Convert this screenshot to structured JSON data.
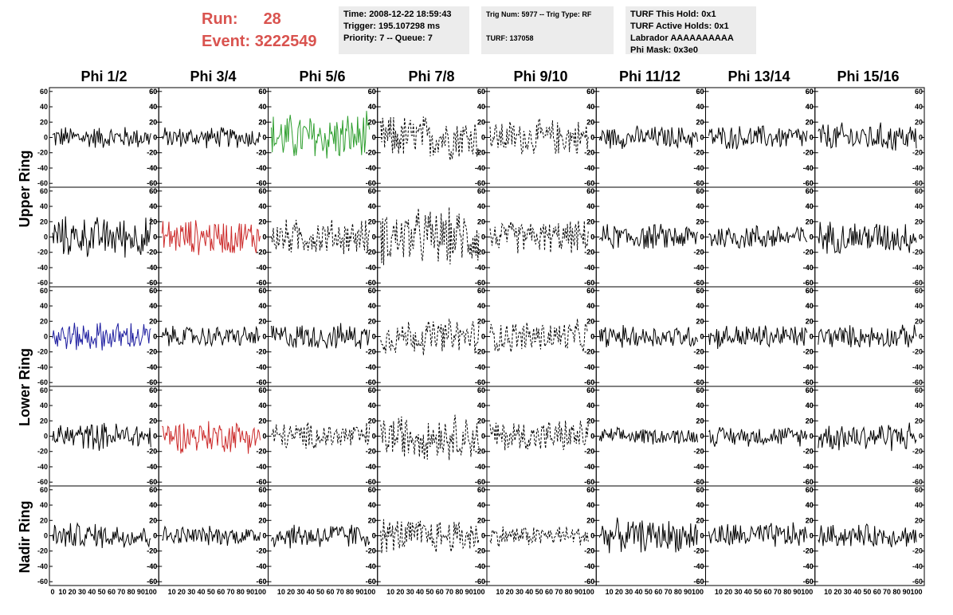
{
  "header": {
    "run_label": "Run:",
    "run_value": "28",
    "event_label": "Event:",
    "event_value": "3222549",
    "accent_color": "#d9534f"
  },
  "info_boxes": {
    "time": [
      "Time: 2008-12-22 18:59:43",
      "Trigger: 195.107298 ms",
      "Priority: 7 -- Queue: 7"
    ],
    "trig": [
      "Trig Num: 5977 -- Trig Type: RF",
      "",
      "TURF: 137058"
    ],
    "turf": [
      "TURF This Hold: 0x1",
      "TURF Active Holds: 0x1",
      "Labrador AAAAAAAAAA",
      "Phi Mask: 0x3e0"
    ]
  },
  "columns": [
    "Phi 1/2",
    "Phi 3/4",
    "Phi 5/6",
    "Phi 7/8",
    "Phi 9/10",
    "Phi 11/12",
    "Phi 13/14",
    "Phi 15/16"
  ],
  "ring_labels": [
    {
      "label": "Upper Ring",
      "rows": [
        0,
        1
      ]
    },
    {
      "label": "Lower Ring",
      "rows": [
        2,
        3
      ]
    },
    {
      "label": "Nadir Ring",
      "rows": [
        4
      ]
    }
  ],
  "chart_data": {
    "type": "line",
    "ylim": [
      -65,
      65
    ],
    "xlim": [
      0,
      100
    ],
    "y_ticks": [
      -60,
      -40,
      -20,
      0,
      20,
      40,
      60
    ],
    "x_ticks": [
      0,
      10,
      20,
      30,
      40,
      50,
      60,
      70,
      80,
      90,
      100
    ],
    "bottom_tick_label_strip": "0 10 20 30 40 50 60 70 80 90 100",
    "panels": [
      [
        {
          "style": "solid",
          "color": "#000000",
          "amp": 14
        },
        {
          "style": "solid",
          "color": "#000000",
          "amp": 13
        },
        {
          "style": "solid",
          "color": "#2e9e2e",
          "amp": 30
        },
        {
          "style": "dashed",
          "color": "#000000",
          "amp": 28
        },
        {
          "style": "dashed",
          "color": "#000000",
          "amp": 22
        },
        {
          "style": "solid",
          "color": "#000000",
          "amp": 14
        },
        {
          "style": "solid",
          "color": "#000000",
          "amp": 15
        },
        {
          "style": "solid",
          "color": "#000000",
          "amp": 18
        }
      ],
      [
        {
          "style": "solid",
          "color": "#000000",
          "amp": 25
        },
        {
          "style": "solid",
          "color": "#cc2b2b",
          "amp": 22
        },
        {
          "style": "dashed",
          "color": "#000000",
          "amp": 22
        },
        {
          "style": "dashed",
          "color": "#000000",
          "amp": 35
        },
        {
          "style": "dashed",
          "color": "#000000",
          "amp": 20
        },
        {
          "style": "solid",
          "color": "#000000",
          "amp": 16
        },
        {
          "style": "solid",
          "color": "#000000",
          "amp": 16
        },
        {
          "style": "solid",
          "color": "#000000",
          "amp": 20
        }
      ],
      [
        {
          "style": "solid",
          "color": "#1e1ea0",
          "amp": 18
        },
        {
          "style": "solid",
          "color": "#000000",
          "amp": 13
        },
        {
          "style": "solid",
          "color": "#000000",
          "amp": 16
        },
        {
          "style": "dashed",
          "color": "#000000",
          "amp": 22
        },
        {
          "style": "dashed",
          "color": "#000000",
          "amp": 20
        },
        {
          "style": "solid",
          "color": "#000000",
          "amp": 14
        },
        {
          "style": "solid",
          "color": "#000000",
          "amp": 15
        },
        {
          "style": "solid",
          "color": "#000000",
          "amp": 14
        }
      ],
      [
        {
          "style": "solid",
          "color": "#000000",
          "amp": 17
        },
        {
          "style": "solid",
          "color": "#cc2b2b",
          "amp": 20
        },
        {
          "style": "dashed",
          "color": "#000000",
          "amp": 17
        },
        {
          "style": "dashed",
          "color": "#000000",
          "amp": 28
        },
        {
          "style": "dashed",
          "color": "#000000",
          "amp": 20
        },
        {
          "style": "solid",
          "color": "#000000",
          "amp": 10
        },
        {
          "style": "solid",
          "color": "#000000",
          "amp": 12
        },
        {
          "style": "solid",
          "color": "#000000",
          "amp": 18
        }
      ],
      [
        {
          "style": "solid",
          "color": "#000000",
          "amp": 16
        },
        {
          "style": "solid",
          "color": "#000000",
          "amp": 12
        },
        {
          "style": "solid",
          "color": "#000000",
          "amp": 16
        },
        {
          "style": "dashed",
          "color": "#000000",
          "amp": 22
        },
        {
          "style": "dashed",
          "color": "#000000",
          "amp": 13
        },
        {
          "style": "solid",
          "color": "#000000",
          "amp": 20
        },
        {
          "style": "solid",
          "color": "#000000",
          "amp": 16
        },
        {
          "style": "solid",
          "color": "#000000",
          "amp": 14
        }
      ]
    ]
  }
}
